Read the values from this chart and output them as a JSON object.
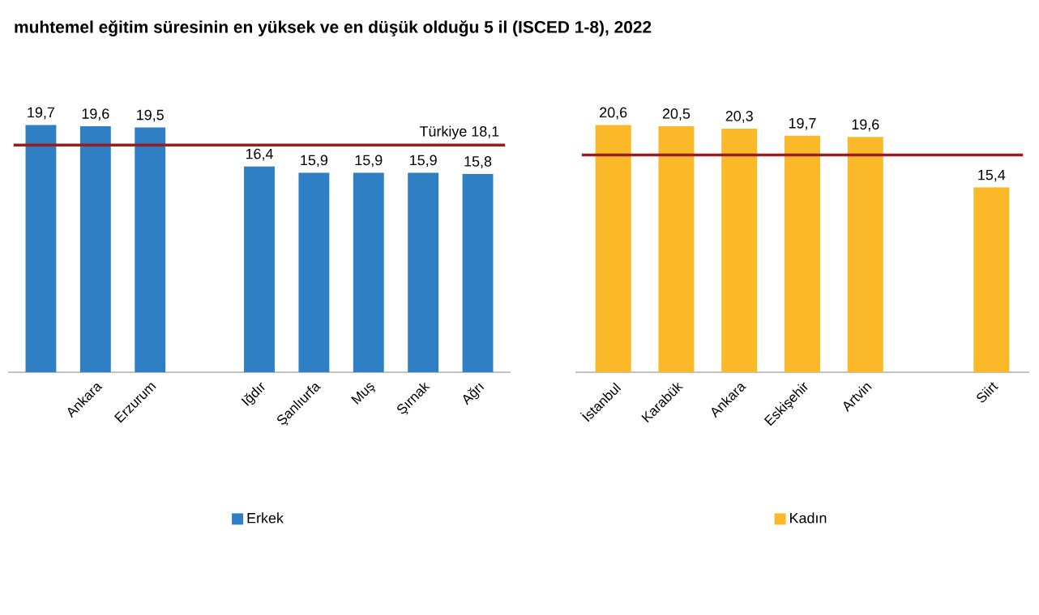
{
  "chart_data": [
    {
      "type": "bar",
      "title": "muhtemel eğitim süresinin en yüksek ve en düşük olduğu 5 il (ISCED 1-8), 2022",
      "categories": [
        null,
        "Ankara",
        "Erzurum",
        null,
        "Iğdır",
        "Şanlıurfa",
        "Muş",
        "Şırnak",
        "Ağrı"
      ],
      "series": [
        {
          "name": "Erkek",
          "color": "#2e7fc4",
          "values": [
            19.7,
            19.6,
            19.5,
            null,
            16.4,
            15.9,
            15.9,
            15.9,
            15.8
          ],
          "value_labels": [
            "19,7",
            "19,6",
            "19,5",
            null,
            "16,4",
            "15,9",
            "15,9",
            "15,9",
            "15,8"
          ]
        }
      ],
      "legend": "bottom",
      "ref_lines": [
        {
          "axis": "y",
          "value": 18.1,
          "label": "Türkiye  18,1",
          "color": "#9b1c1f"
        }
      ]
    },
    {
      "type": "bar",
      "categories": [
        "İstanbul",
        "Karabük",
        "Ankara",
        "Eskişehir",
        "Artvin",
        null,
        "Siirt"
      ],
      "series": [
        {
          "name": "Kadın",
          "color": "#fbb829",
          "values": [
            20.6,
            20.5,
            20.3,
            19.7,
            19.6,
            null,
            15.4
          ],
          "value_labels": [
            "20,6",
            "20,5",
            "20,3",
            "19,7",
            "19,6",
            null,
            "15,4"
          ]
        }
      ],
      "legend": "bottom",
      "ref_lines": [
        {
          "axis": "y",
          "value": 18.1,
          "color": "#9b1c1f"
        }
      ]
    }
  ]
}
